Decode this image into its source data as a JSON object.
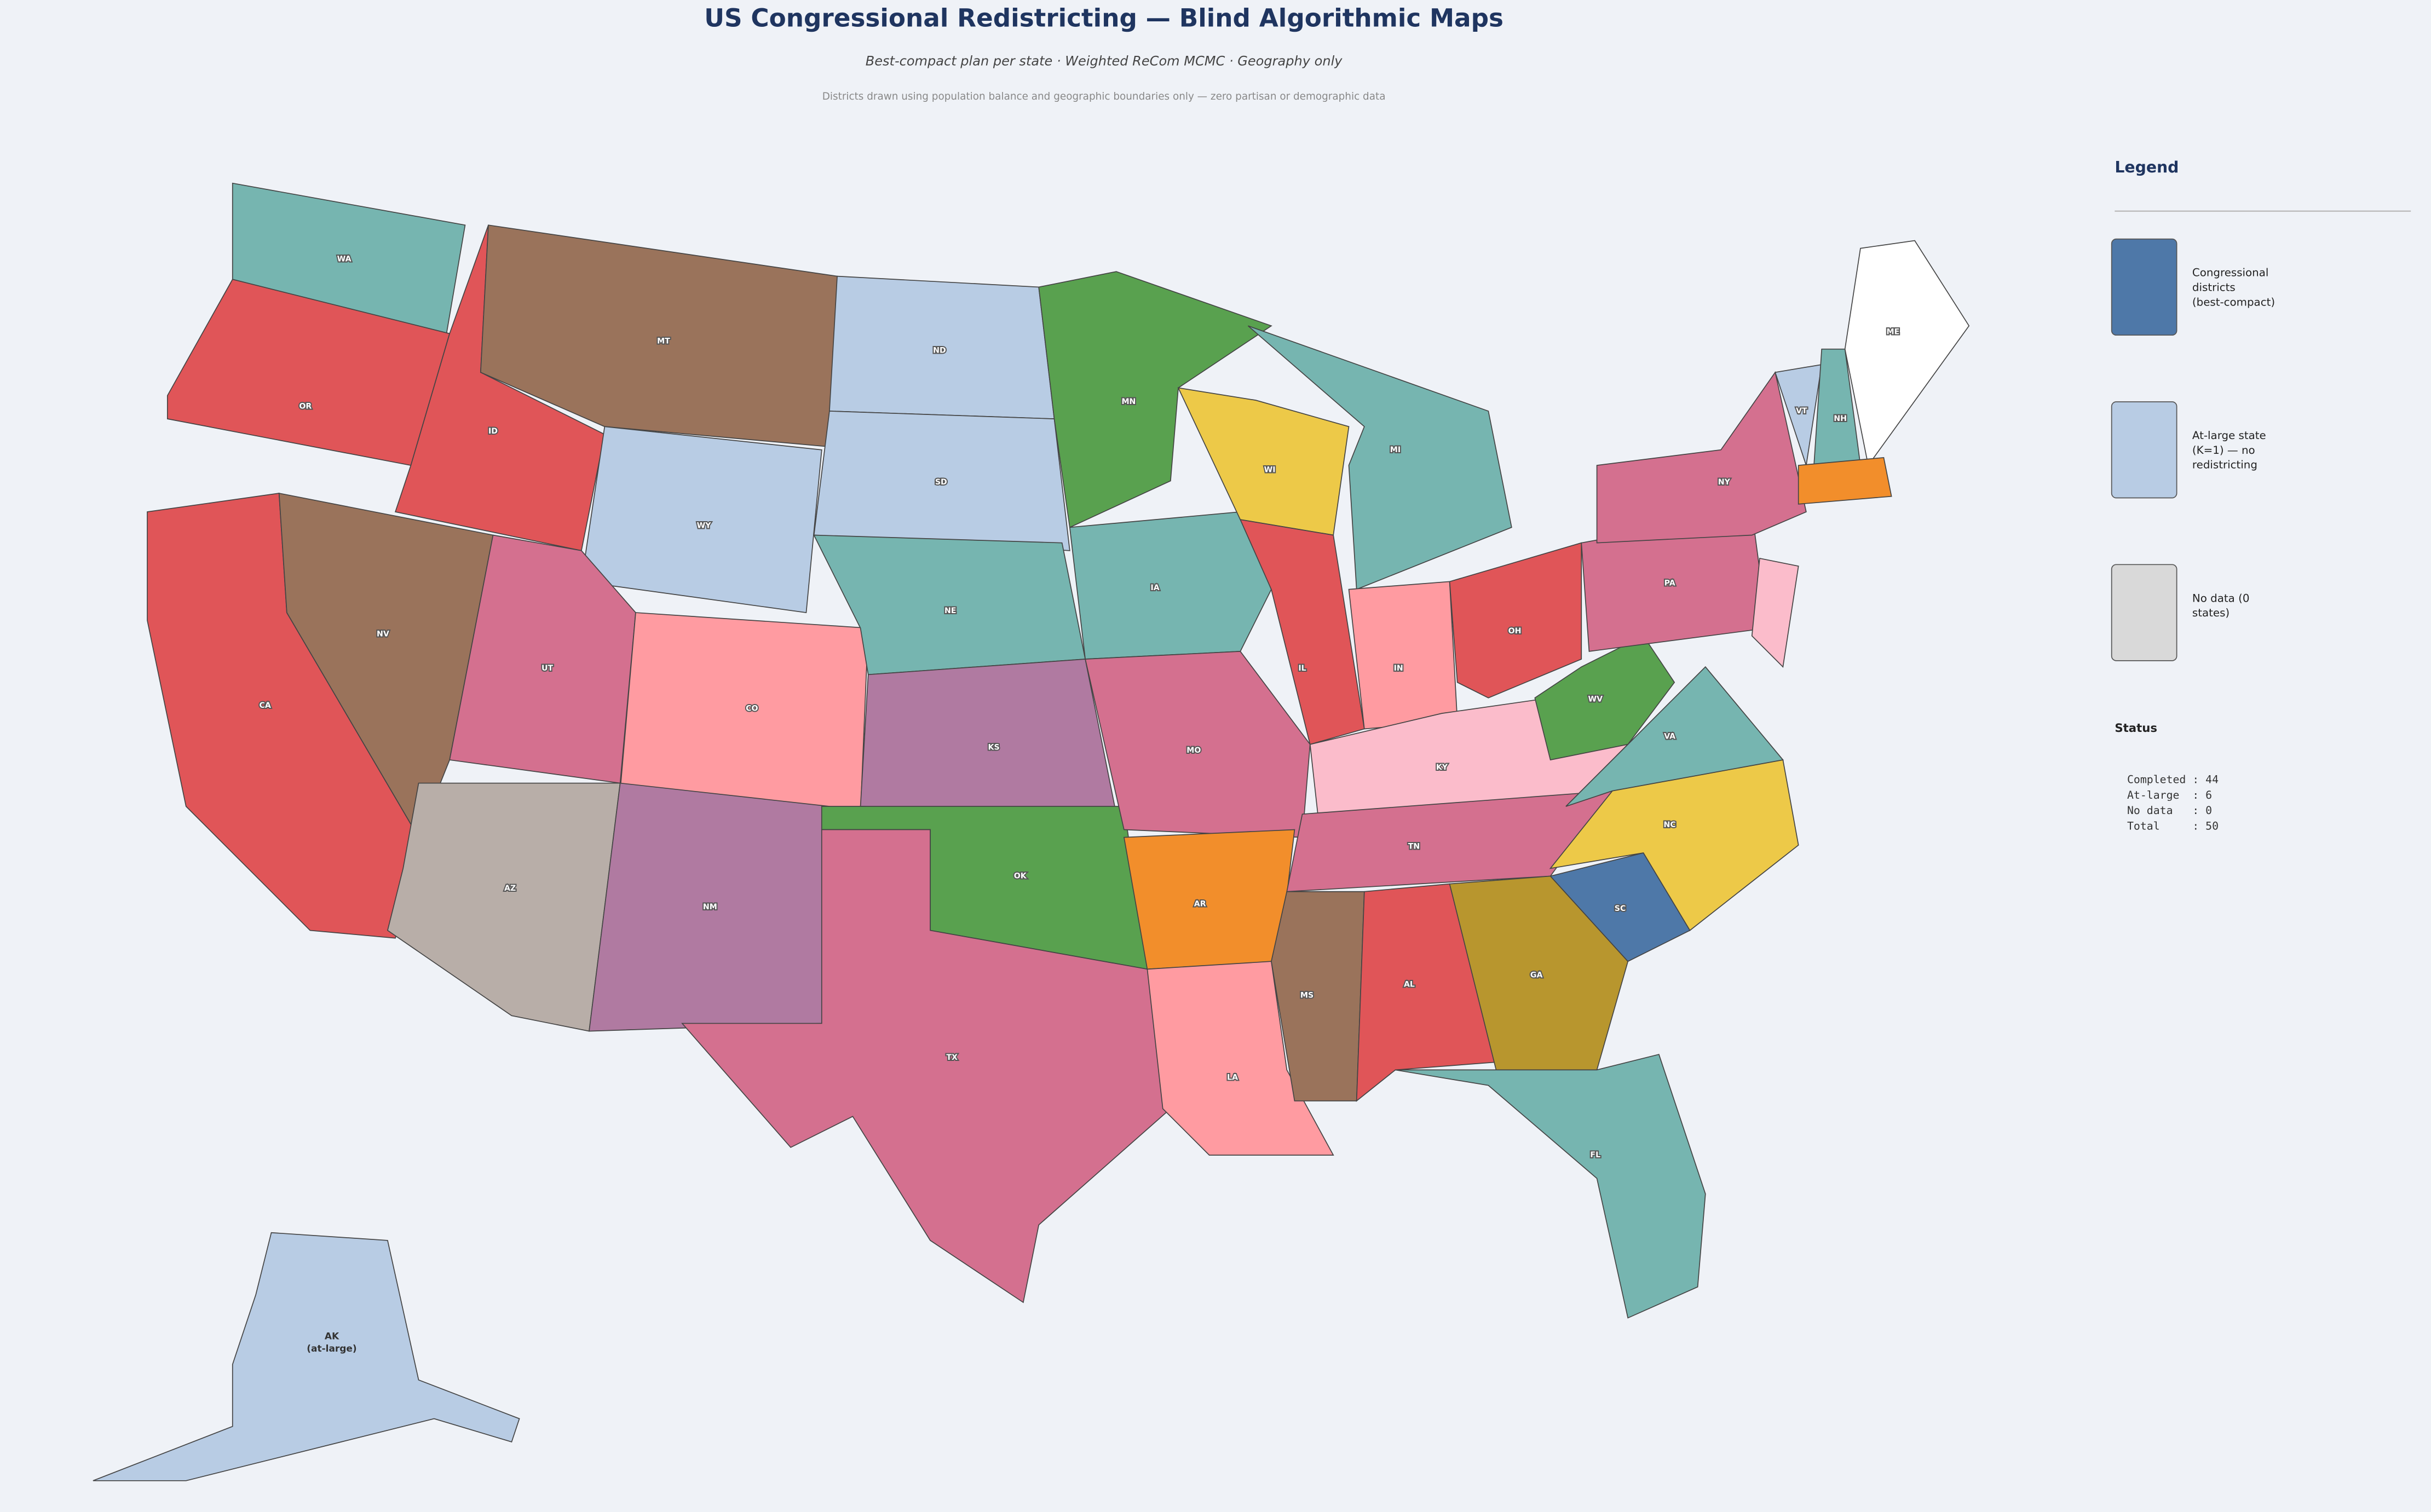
{
  "header": {
    "title": "US Congressional Redistricting — Blind Algorithmic Maps",
    "subtitle": "Best-compact plan per state  ·  Weighted ReCom MCMC  ·  Geography only",
    "note": "Districts drawn using population balance and geographic boundaries only — zero partisan or demographic data"
  },
  "legend": {
    "title": "Legend",
    "items": [
      {
        "label": "Congressional districts (best-compact)",
        "color": "#4e78a8"
      },
      {
        "label": "At-large state (K=1) — no redistricting",
        "color": "#b8cce4"
      },
      {
        "label": "No data (0 states)",
        "color": "#d9d9d9"
      }
    ]
  },
  "status": {
    "title": "Status",
    "lines": [
      "Completed : 44",
      "At-large  : 6",
      "No data   : 0",
      "Total     : 50"
    ]
  },
  "states": [
    "WA",
    "OR",
    "CA",
    "NV",
    "ID",
    "MT",
    "WY",
    "UT",
    "AZ",
    "CO",
    "NM",
    "ND",
    "SD",
    "NE",
    "KS",
    "OK",
    "TX",
    "MN",
    "IA",
    "MO",
    "AR",
    "LA",
    "WI",
    "IL",
    "MI",
    "IN",
    "OH",
    "KY",
    "TN",
    "MS",
    "AL",
    "GA",
    "FL",
    "SC",
    "NC",
    "VA",
    "WV",
    "PA",
    "NY",
    "VT",
    "NH",
    "ME"
  ],
  "alaska": {
    "label": "AK",
    "note": "(at-large)"
  }
}
